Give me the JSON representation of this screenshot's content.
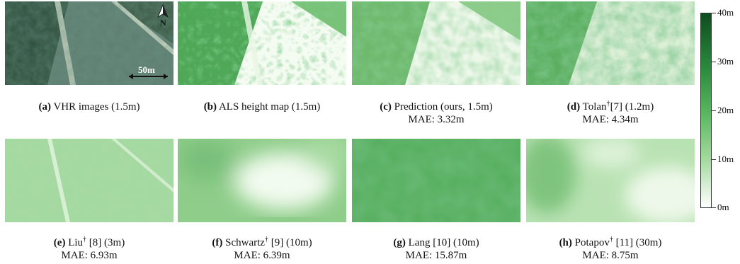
{
  "panels": [
    {
      "id": "a",
      "letter": "(a)",
      "text": "VHR images (1.5m)",
      "sup": "",
      "mae": ""
    },
    {
      "id": "b",
      "letter": "(b)",
      "text": "ALS height map (1.5m)",
      "sup": "",
      "mae": ""
    },
    {
      "id": "c",
      "letter": "(c)",
      "text": "Prediction  (ours, 1.5m)",
      "sup": "",
      "mae": "MAE: 3.32m"
    },
    {
      "id": "d",
      "letter": "(d)",
      "text": "Tolan",
      "sup": "†",
      "rest": "[7] (1.2m)",
      "mae": "MAE: 4.34m"
    },
    {
      "id": "e",
      "letter": "(e)",
      "text": "Liu",
      "sup": "†",
      "rest": " [8] (3m)",
      "mae": "MAE: 6.93m"
    },
    {
      "id": "f",
      "letter": "(f)",
      "text": "Schwartz",
      "sup": "†",
      "rest": " [9] (10m)",
      "mae": "MAE: 6.39m"
    },
    {
      "id": "g",
      "letter": "(g)",
      "text": "Lang [10] (10m)",
      "sup": "",
      "mae": "MAE: 15.87m"
    },
    {
      "id": "h",
      "letter": "(h)",
      "text": "Potapov",
      "sup": "†",
      "rest": " [11] (30m)",
      "mae": "MAE: 8.75m"
    }
  ],
  "overlay": {
    "north": "N",
    "scale": "50m"
  },
  "colorbar": {
    "ticks": [
      "40m",
      "30m",
      "20m",
      "10m",
      "0m"
    ]
  }
}
